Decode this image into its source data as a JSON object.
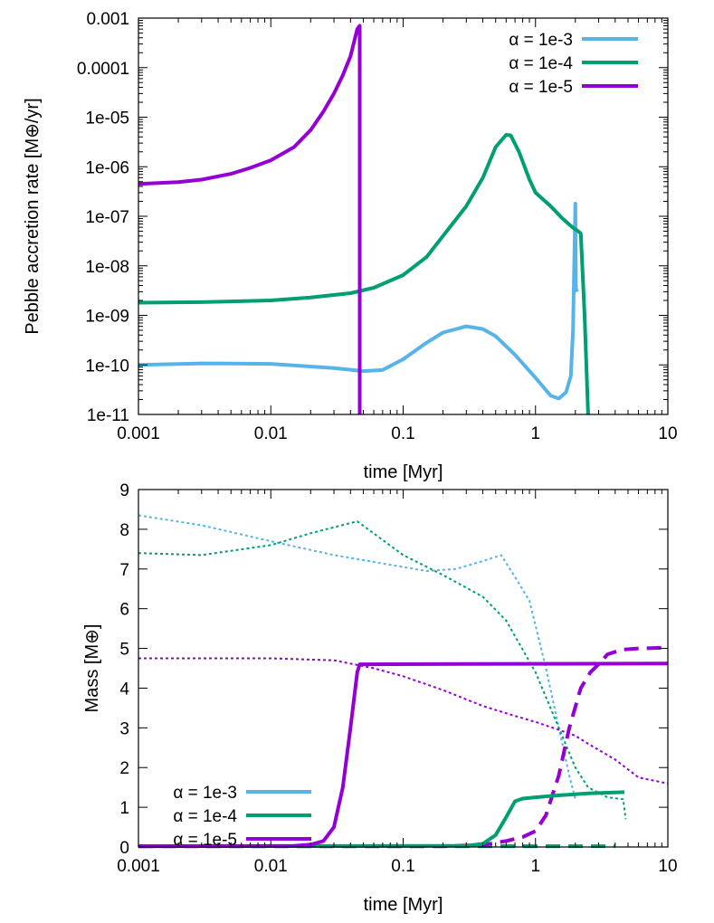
{
  "chart_data": [
    {
      "type": "line",
      "xlabel": "time [Myr]",
      "ylabel": "Pebble accretion rate [M⊕/yr]",
      "xscale": "log",
      "yscale": "log",
      "xlim": [
        0.001,
        10
      ],
      "ylim": [
        1e-11,
        0.001
      ],
      "xticks": [
        {
          "v": 0.001,
          "label": "0.001"
        },
        {
          "v": 0.01,
          "label": "0.01"
        },
        {
          "v": 0.1,
          "label": "0.1"
        },
        {
          "v": 1,
          "label": "1"
        },
        {
          "v": 10,
          "label": "10"
        }
      ],
      "yticks": [
        {
          "v": 1e-11,
          "label": "1e-11"
        },
        {
          "v": 1e-10,
          "label": "1e-10"
        },
        {
          "v": 1e-09,
          "label": "1e-09"
        },
        {
          "v": 1e-08,
          "label": "1e-08"
        },
        {
          "v": 1e-07,
          "label": "1e-07"
        },
        {
          "v": 1e-06,
          "label": "1e-06"
        },
        {
          "v": 1e-05,
          "label": "1e-05"
        },
        {
          "v": 0.0001,
          "label": "0.0001"
        },
        {
          "v": 0.001,
          "label": "0.001"
        }
      ],
      "legend_position": "top-right",
      "series": [
        {
          "name": "α = 1e-3",
          "color": "#56b4e9",
          "style": "solid",
          "points": [
            [
              0.001,
              1e-10
            ],
            [
              0.003,
              1.07e-10
            ],
            [
              0.01,
              1.05e-10
            ],
            [
              0.03,
              8.6e-11
            ],
            [
              0.05,
              7.5e-11
            ],
            [
              0.07,
              7.9e-11
            ],
            [
              0.1,
              1.3e-10
            ],
            [
              0.15,
              2.8e-10
            ],
            [
              0.2,
              4.5e-10
            ],
            [
              0.3,
              6e-10
            ],
            [
              0.4,
              5.3e-10
            ],
            [
              0.5,
              3.8e-10
            ],
            [
              0.7,
              1.6e-10
            ],
            [
              1.0,
              5.5e-11
            ],
            [
              1.3,
              2.4e-11
            ],
            [
              1.5,
              2.1e-11
            ],
            [
              1.7,
              2.8e-11
            ],
            [
              1.85,
              6e-11
            ],
            [
              1.92,
              5e-10
            ],
            [
              1.96,
              1e-08
            ],
            [
              2.0,
              1.8e-07
            ],
            [
              2.02,
              3.5e-09
            ],
            [
              2.06,
              3e-09
            ]
          ]
        },
        {
          "name": "α = 1e-4",
          "color": "#009e73",
          "style": "solid",
          "points": [
            [
              0.001,
              1.8e-09
            ],
            [
              0.003,
              1.85e-09
            ],
            [
              0.01,
              2e-09
            ],
            [
              0.02,
              2.3e-09
            ],
            [
              0.04,
              2.8e-09
            ],
            [
              0.06,
              3.6e-09
            ],
            [
              0.1,
              6.5e-09
            ],
            [
              0.15,
              1.5e-08
            ],
            [
              0.2,
              4e-08
            ],
            [
              0.3,
              1.6e-07
            ],
            [
              0.4,
              6e-07
            ],
            [
              0.5,
              2.5e-06
            ],
            [
              0.6,
              4.4e-06
            ],
            [
              0.65,
              4.3e-06
            ],
            [
              0.75,
              2e-06
            ],
            [
              0.9,
              5.5e-07
            ],
            [
              1.0,
              3e-07
            ],
            [
              1.3,
              1.6e-07
            ],
            [
              1.6,
              9e-08
            ],
            [
              1.9,
              6e-08
            ],
            [
              2.1,
              5e-08
            ],
            [
              2.2,
              4.5e-08
            ],
            [
              2.35,
              1e-09
            ],
            [
              2.5,
              1e-11
            ]
          ]
        },
        {
          "name": "α = 1e-5",
          "color": "#9400d3",
          "style": "solid",
          "points": [
            [
              0.001,
              4.5e-07
            ],
            [
              0.002,
              4.9e-07
            ],
            [
              0.003,
              5.5e-07
            ],
            [
              0.005,
              7.2e-07
            ],
            [
              0.007,
              9.5e-07
            ],
            [
              0.01,
              1.35e-06
            ],
            [
              0.015,
              2.5e-06
            ],
            [
              0.02,
              5.5e-06
            ],
            [
              0.025,
              1.3e-05
            ],
            [
              0.03,
              3e-05
            ],
            [
              0.035,
              7e-05
            ],
            [
              0.04,
              0.00017
            ],
            [
              0.045,
              0.0006
            ],
            [
              0.047,
              0.0007
            ],
            [
              0.047,
              1e-11
            ]
          ]
        }
      ]
    },
    {
      "type": "line",
      "xlabel": "time [Myr]",
      "ylabel": "Mass [M⊕]",
      "xscale": "log",
      "yscale": "linear",
      "xlim": [
        0.001,
        10
      ],
      "ylim": [
        0,
        9
      ],
      "xticks": [
        {
          "v": 0.001,
          "label": "0.001"
        },
        {
          "v": 0.01,
          "label": "0.01"
        },
        {
          "v": 0.1,
          "label": "0.1"
        },
        {
          "v": 1,
          "label": "1"
        },
        {
          "v": 10,
          "label": "10"
        }
      ],
      "yticks": [
        {
          "v": 0,
          "label": "0"
        },
        {
          "v": 1,
          "label": "1"
        },
        {
          "v": 2,
          "label": "2"
        },
        {
          "v": 3,
          "label": "3"
        },
        {
          "v": 4,
          "label": "4"
        },
        {
          "v": 5,
          "label": "5"
        },
        {
          "v": 6,
          "label": "6"
        },
        {
          "v": 7,
          "label": "7"
        },
        {
          "v": 8,
          "label": "8"
        },
        {
          "v": 9,
          "label": "9"
        }
      ],
      "legend_position": "bottom-left",
      "legend_entries": [
        {
          "name": "α = 1e-3",
          "color": "#56b4e9"
        },
        {
          "name": "α = 1e-4",
          "color": "#009e73"
        },
        {
          "name": "α = 1e-5",
          "color": "#9400d3"
        }
      ],
      "series": [
        {
          "name": "α = 1e-3 dotted",
          "color": "#56b4e9",
          "style": "dotted",
          "points": [
            [
              0.001,
              8.35
            ],
            [
              0.003,
              8.1
            ],
            [
              0.01,
              7.7
            ],
            [
              0.03,
              7.35
            ],
            [
              0.1,
              7.05
            ],
            [
              0.15,
              6.95
            ],
            [
              0.25,
              7.0
            ],
            [
              0.4,
              7.2
            ],
            [
              0.55,
              7.35
            ],
            [
              0.7,
              6.8
            ],
            [
              0.9,
              6.2
            ],
            [
              1.2,
              4.5
            ],
            [
              1.5,
              3.0
            ],
            [
              1.8,
              1.8
            ],
            [
              2.0,
              1.2
            ]
          ]
        },
        {
          "name": "α = 1e-4 dotted",
          "color": "#009e73",
          "style": "dotted",
          "points": [
            [
              0.001,
              7.4
            ],
            [
              0.003,
              7.35
            ],
            [
              0.01,
              7.6
            ],
            [
              0.02,
              7.9
            ],
            [
              0.045,
              8.2
            ],
            [
              0.1,
              7.35
            ],
            [
              0.2,
              6.85
            ],
            [
              0.4,
              6.3
            ],
            [
              0.6,
              5.7
            ],
            [
              1.0,
              4.4
            ],
            [
              1.5,
              3.0
            ],
            [
              2.0,
              2.0
            ],
            [
              2.5,
              1.5
            ],
            [
              3.5,
              1.25
            ],
            [
              4.6,
              1.2
            ],
            [
              4.8,
              0.7
            ]
          ]
        },
        {
          "name": "α = 1e-5 dotted",
          "color": "#9400d3",
          "style": "dotted",
          "points": [
            [
              0.001,
              4.75
            ],
            [
              0.01,
              4.75
            ],
            [
              0.03,
              4.7
            ],
            [
              0.06,
              4.5
            ],
            [
              0.1,
              4.3
            ],
            [
              0.2,
              3.95
            ],
            [
              0.4,
              3.55
            ],
            [
              0.7,
              3.3
            ],
            [
              1.0,
              3.15
            ],
            [
              1.5,
              2.95
            ],
            [
              2.0,
              2.8
            ],
            [
              2.5,
              2.6
            ],
            [
              4.0,
              2.2
            ],
            [
              6.0,
              1.75
            ],
            [
              10,
              1.6
            ]
          ]
        },
        {
          "name": "α = 1e-3 dashed",
          "color": "#56b4e9",
          "style": "dashed",
          "points": [
            [
              0.001,
              0.02
            ],
            [
              2.0,
              0.02
            ]
          ]
        },
        {
          "name": "α = 1e-4 dashed",
          "color": "#009e73",
          "style": "dashed",
          "points": [
            [
              0.001,
              0.02
            ],
            [
              4.0,
              0.02
            ]
          ]
        },
        {
          "name": "α = 1e-5 dashed",
          "color": "#9400d3",
          "style": "dashed",
          "points": [
            [
              0.001,
              0.02
            ],
            [
              0.2,
              0.02
            ],
            [
              0.4,
              0.05
            ],
            [
              0.6,
              0.15
            ],
            [
              0.8,
              0.25
            ],
            [
              1.0,
              0.4
            ],
            [
              1.2,
              0.8
            ],
            [
              1.5,
              1.8
            ],
            [
              1.8,
              3.0
            ],
            [
              2.2,
              4.0
            ],
            [
              2.6,
              4.4
            ],
            [
              3.0,
              4.6
            ],
            [
              3.5,
              4.85
            ],
            [
              4.5,
              4.97
            ],
            [
              6.0,
              5.0
            ],
            [
              10,
              5.02
            ]
          ]
        },
        {
          "name": "α = 1e-4 solid",
          "color": "#009e73",
          "style": "solid",
          "points": [
            [
              0.001,
              0.02
            ],
            [
              0.3,
              0.03
            ],
            [
              0.4,
              0.08
            ],
            [
              0.5,
              0.3
            ],
            [
              0.6,
              0.75
            ],
            [
              0.7,
              1.15
            ],
            [
              0.8,
              1.22
            ],
            [
              1.0,
              1.25
            ],
            [
              1.5,
              1.3
            ],
            [
              2.5,
              1.35
            ],
            [
              4.7,
              1.38
            ]
          ]
        },
        {
          "name": "α = 1e-5 solid",
          "color": "#9400d3",
          "style": "solid",
          "points": [
            [
              0.001,
              0.02
            ],
            [
              0.015,
              0.03
            ],
            [
              0.02,
              0.06
            ],
            [
              0.025,
              0.15
            ],
            [
              0.03,
              0.5
            ],
            [
              0.035,
              1.5
            ],
            [
              0.04,
              3.0
            ],
            [
              0.045,
              4.4
            ],
            [
              0.047,
              4.6
            ],
            [
              10,
              4.62
            ]
          ]
        }
      ]
    }
  ]
}
